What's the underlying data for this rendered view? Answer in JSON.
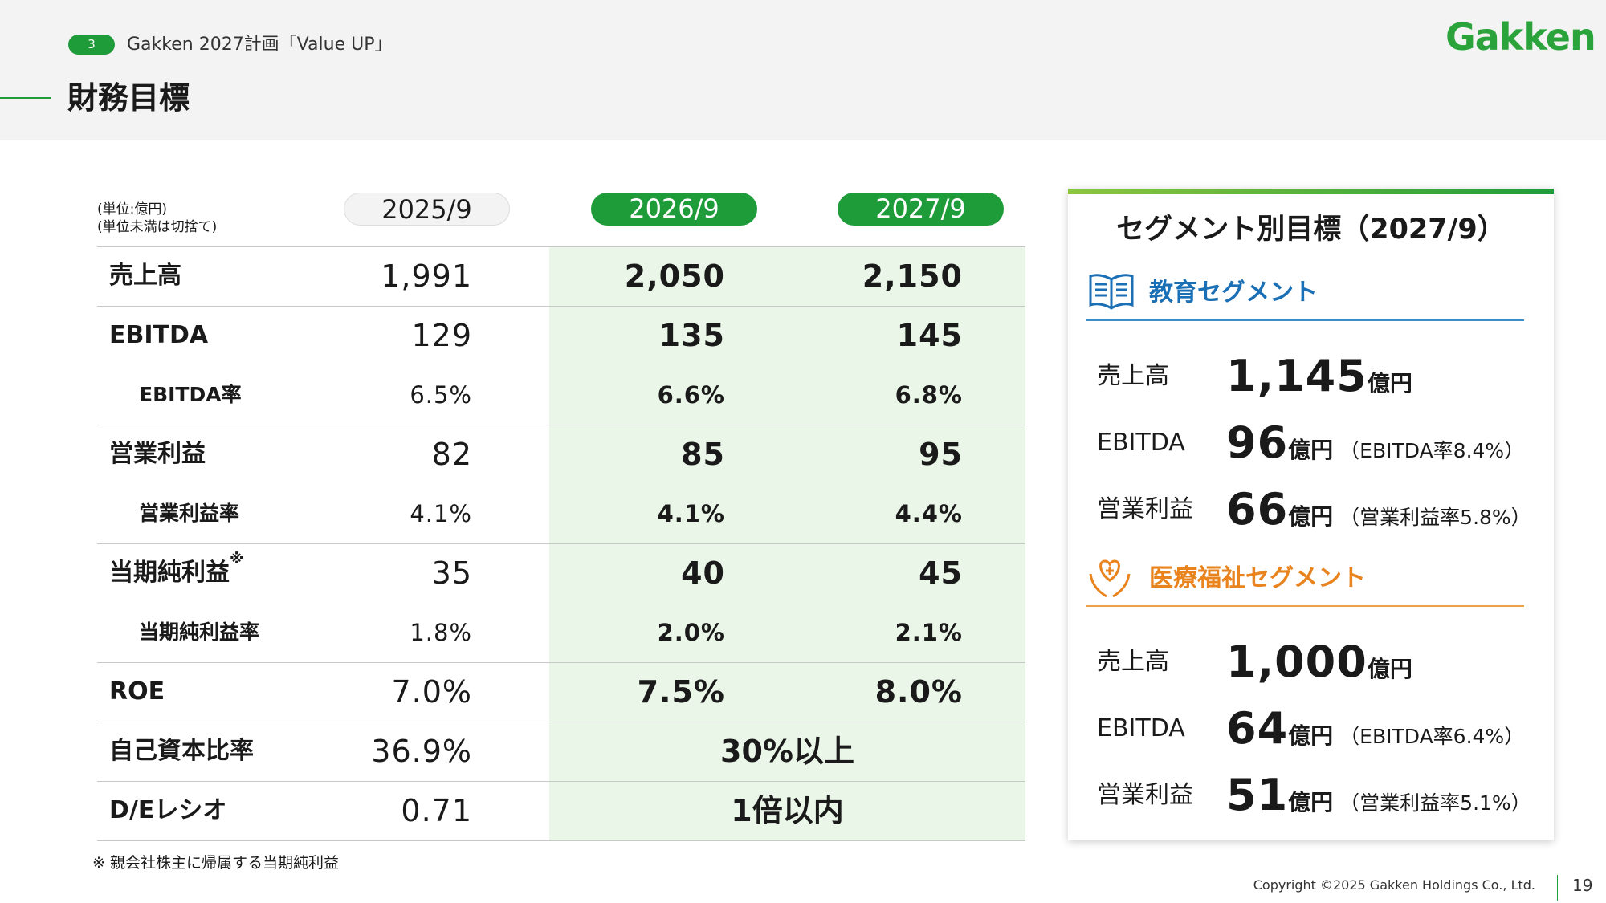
{
  "header": {
    "page_badge": "3",
    "plan": "Gakken 2027計画「Value UP」",
    "title": "財務目標",
    "logo": "Gakken"
  },
  "table": {
    "unit_notes": [
      "(単位:億円)",
      "(単位未満は切捨て)"
    ],
    "columns": [
      "2025/9",
      "2026/9",
      "2027/9"
    ],
    "rows": [
      {
        "label": "売上高",
        "values": [
          "1,991",
          "2,050",
          "2,150"
        ]
      },
      {
        "label": "EBITDA",
        "values": [
          "129",
          "135",
          "145"
        ],
        "detail": {
          "label": "EBITDA率",
          "values": [
            "6.5%",
            "6.6%",
            "6.8%"
          ]
        }
      },
      {
        "label": "営業利益",
        "values": [
          "82",
          "85",
          "95"
        ],
        "detail": {
          "label": "営業利益率",
          "values": [
            "4.1%",
            "4.1%",
            "4.4%"
          ]
        }
      },
      {
        "label": "当期純利益",
        "note_mark": "※",
        "values": [
          "35",
          "40",
          "45"
        ],
        "detail": {
          "label": "当期純利益率",
          "values": [
            "1.8%",
            "2.0%",
            "2.1%"
          ]
        }
      },
      {
        "label": "ROE",
        "values": [
          "7.0%",
          "7.5%",
          "8.0%"
        ]
      },
      {
        "label": "自己資本比率",
        "values": [
          "36.9%",
          "30%以上"
        ]
      },
      {
        "label": "D/Eレシオ",
        "values": [
          "0.71",
          "1倍以内"
        ]
      }
    ],
    "footnote": "※ 親会社株主に帰属する当期純利益"
  },
  "segments": {
    "title": "セグメント別目標（2027/9）",
    "groups": [
      {
        "name": "教育セグメント",
        "color": "#1a6fb5",
        "line_color": "#3b8ec6",
        "items": [
          {
            "label": "売上高",
            "value": "1,145",
            "unit": "億円"
          },
          {
            "label": "EBITDA",
            "value": "96",
            "unit": "億円",
            "note": "（EBITDA率8.4%）"
          },
          {
            "label": "営業利益",
            "value": "66",
            "unit": "億円",
            "note": "（営業利益率5.8%）"
          }
        ]
      },
      {
        "name": "医療福祉セグメント",
        "color": "#e8831e",
        "line_color": "#efa04a",
        "items": [
          {
            "label": "売上高",
            "value": "1,000",
            "unit": "億円"
          },
          {
            "label": "EBITDA",
            "value": "64",
            "unit": "億円",
            "note": "（EBITDA率6.4%）"
          },
          {
            "label": "営業利益",
            "value": "51",
            "unit": "億円",
            "note": "（営業利益率5.1%）"
          }
        ]
      }
    ]
  },
  "footer": {
    "copyright": "Copyright ©2025 Gakken Holdings Co., Ltd.",
    "page": "19"
  }
}
